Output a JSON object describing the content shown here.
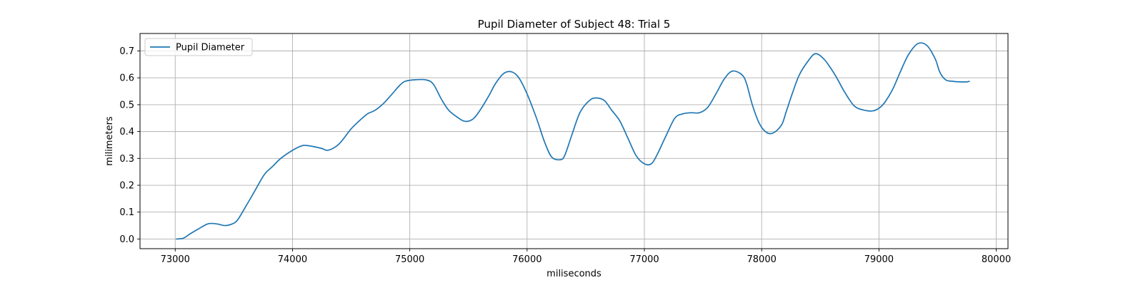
{
  "chart_data": {
    "type": "line",
    "title": "Pupil Diameter of Subject 48: Trial 5",
    "xlabel": "miliseconds",
    "ylabel": "milimeters",
    "xlim": [
      72700,
      80100
    ],
    "ylim": [
      -0.036,
      0.765
    ],
    "xticks": [
      73000,
      74000,
      75000,
      76000,
      77000,
      78000,
      79000,
      80000
    ],
    "yticks": [
      0.0,
      0.1,
      0.2,
      0.3,
      0.4,
      0.5,
      0.6,
      0.7
    ],
    "ytick_labels": [
      "0.0",
      "0.1",
      "0.2",
      "0.3",
      "0.4",
      "0.5",
      "0.6",
      "0.7"
    ],
    "grid": true,
    "legend": {
      "position": "upper-left",
      "entries": [
        "Pupil Diameter"
      ]
    },
    "colors": {
      "series": "#1f77b4",
      "grid": "#b0b0b0",
      "axes": "#000000"
    },
    "series": [
      {
        "name": "Pupil Diameter",
        "x": [
          73010,
          73070,
          73130,
          73200,
          73270,
          73310,
          73370,
          73420,
          73480,
          73530,
          73600,
          73680,
          73760,
          73830,
          73900,
          74000,
          74080,
          74120,
          74180,
          74250,
          74300,
          74370,
          74420,
          74500,
          74570,
          74640,
          74700,
          74770,
          74840,
          74910,
          74960,
          75050,
          75140,
          75200,
          75270,
          75330,
          75400,
          75470,
          75540,
          75600,
          75670,
          75730,
          75800,
          75870,
          75930,
          76000,
          76080,
          76150,
          76210,
          76280,
          76320,
          76380,
          76450,
          76530,
          76590,
          76660,
          76720,
          76790,
          76860,
          76930,
          77000,
          77060,
          77110,
          77180,
          77260,
          77330,
          77400,
          77470,
          77540,
          77610,
          77680,
          77750,
          77830,
          77870,
          77920,
          77980,
          78040,
          78100,
          78170,
          78210,
          78260,
          78320,
          78400,
          78460,
          78530,
          78590,
          78640,
          78710,
          78790,
          78870,
          78950,
          79010,
          79060,
          79120,
          79180,
          79250,
          79330,
          79410,
          79480,
          79520,
          79570,
          79630,
          79690,
          79750,
          79770
        ],
        "values": [
          0.0,
          0.003,
          0.02,
          0.038,
          0.055,
          0.058,
          0.055,
          0.05,
          0.055,
          0.07,
          0.12,
          0.18,
          0.24,
          0.27,
          0.3,
          0.33,
          0.347,
          0.348,
          0.344,
          0.337,
          0.33,
          0.344,
          0.365,
          0.41,
          0.44,
          0.466,
          0.478,
          0.502,
          0.535,
          0.57,
          0.587,
          0.593,
          0.592,
          0.577,
          0.52,
          0.48,
          0.455,
          0.438,
          0.447,
          0.48,
          0.53,
          0.578,
          0.616,
          0.622,
          0.6,
          0.54,
          0.45,
          0.36,
          0.305,
          0.295,
          0.31,
          0.385,
          0.47,
          0.515,
          0.525,
          0.515,
          0.48,
          0.44,
          0.375,
          0.31,
          0.28,
          0.28,
          0.315,
          0.38,
          0.45,
          0.466,
          0.47,
          0.47,
          0.49,
          0.54,
          0.595,
          0.625,
          0.612,
          0.58,
          0.5,
          0.43,
          0.397,
          0.395,
          0.425,
          0.475,
          0.54,
          0.61,
          0.665,
          0.69,
          0.67,
          0.635,
          0.6,
          0.545,
          0.495,
          0.48,
          0.477,
          0.49,
          0.515,
          0.56,
          0.62,
          0.685,
          0.727,
          0.72,
          0.67,
          0.62,
          0.592,
          0.587,
          0.585,
          0.585,
          0.587
        ]
      }
    ]
  }
}
